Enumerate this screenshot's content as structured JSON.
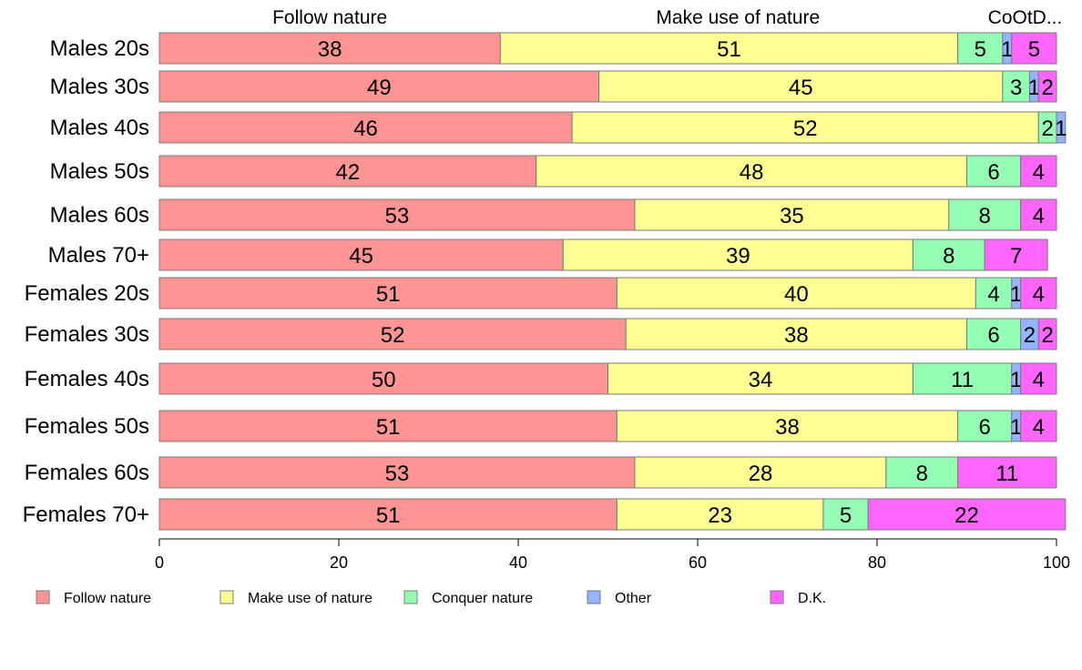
{
  "chart_data": {
    "type": "bar",
    "orientation": "horizontal",
    "stacked": true,
    "categories": [
      "Males 20s",
      "Males 30s",
      "Males 40s",
      "Males 50s",
      "Males 60s",
      "Males 70+",
      "Females 20s",
      "Females 30s",
      "Females 40s",
      "Females 50s",
      "Females 60s",
      "Females 70+"
    ],
    "series": [
      {
        "name": "Follow nature",
        "color": "#ff9494",
        "values": [
          38,
          49,
          46,
          42,
          53,
          45,
          51,
          52,
          50,
          51,
          53,
          51
        ]
      },
      {
        "name": "Make use of nature",
        "color": "#ffff94",
        "values": [
          51,
          45,
          52,
          48,
          35,
          39,
          40,
          38,
          34,
          38,
          28,
          23
        ]
      },
      {
        "name": "Conquer nature",
        "color": "#94ffb4",
        "values": [
          5,
          3,
          2,
          6,
          8,
          8,
          4,
          6,
          11,
          6,
          8,
          5
        ]
      },
      {
        "name": "Other",
        "color": "#94b4ff",
        "values": [
          1,
          1,
          1,
          0,
          0,
          0,
          1,
          2,
          1,
          1,
          0,
          0
        ]
      },
      {
        "name": "D.K.",
        "color": "#ff66ff",
        "values": [
          5,
          2,
          0,
          4,
          4,
          7,
          4,
          2,
          4,
          4,
          11,
          22
        ]
      }
    ],
    "xlim": [
      0,
      100
    ],
    "xticks": [
      0,
      20,
      40,
      60,
      80,
      100
    ],
    "top_labels": [
      {
        "text": "Follow nature",
        "at": 19
      },
      {
        "text": "Make use of nature",
        "at": 64.5
      },
      {
        "text": "CoOtD...",
        "at": 96.5
      }
    ],
    "legend": {
      "position": "bottom",
      "entries": [
        "Follow nature",
        "Make use of nature",
        "Conquer nature",
        "Other",
        "D.K."
      ]
    },
    "grid": false
  }
}
